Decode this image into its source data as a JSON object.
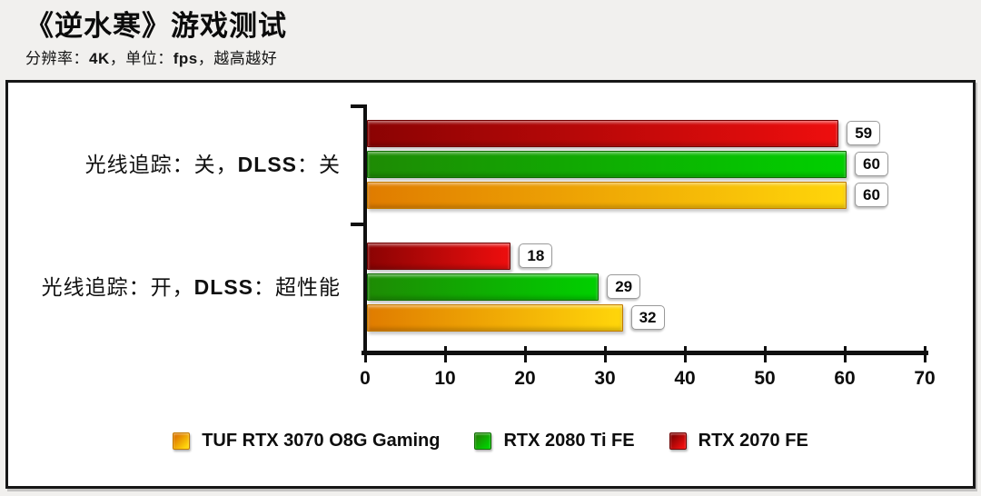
{
  "header": {
    "title": "《逆水寒》游戏测试",
    "subtitle": "分辨率：4K，单位：fps，越高越好",
    "subtitle_bold_terms": [
      "4K",
      "fps"
    ]
  },
  "chart_data": {
    "type": "bar",
    "orientation": "horizontal",
    "title": "《逆水寒》游戏测试",
    "subtitle": "分辨率：4K，单位：fps，越高越好",
    "categories": [
      "光线追踪：关，DLSS：关",
      "光线追踪：开，DLSS：超性能"
    ],
    "category_bold_terms": [
      "DLSS"
    ],
    "series": [
      {
        "name": "TUF RTX 3070 O8G Gaming",
        "values": [
          60,
          32
        ],
        "color_dark": "#E07C00",
        "color_bright": "#FFD60A",
        "color_border": "#C27A00"
      },
      {
        "name": "RTX 2080 Ti FE",
        "values": [
          60,
          29
        ],
        "color_dark": "#1E8B04",
        "color_bright": "#00D000",
        "color_border": "#0E6B00"
      },
      {
        "name": "RTX 2070 FE",
        "values": [
          59,
          18
        ],
        "color_dark": "#8B0303",
        "color_bright": "#EE0E0E",
        "color_border": "#6E0000"
      }
    ],
    "bar_order_top_to_bottom": [
      "RTX 2070 FE",
      "RTX 2080 Ti FE",
      "TUF RTX 3070 O8G Gaming"
    ],
    "xlabel": "",
    "ylabel": "",
    "xlim": [
      0,
      70
    ],
    "x_ticks": [
      0,
      10,
      20,
      30,
      40,
      50,
      60,
      70
    ],
    "grid": false,
    "legend_position": "bottom",
    "value_labels_shown": true,
    "higher_is_better": true
  }
}
